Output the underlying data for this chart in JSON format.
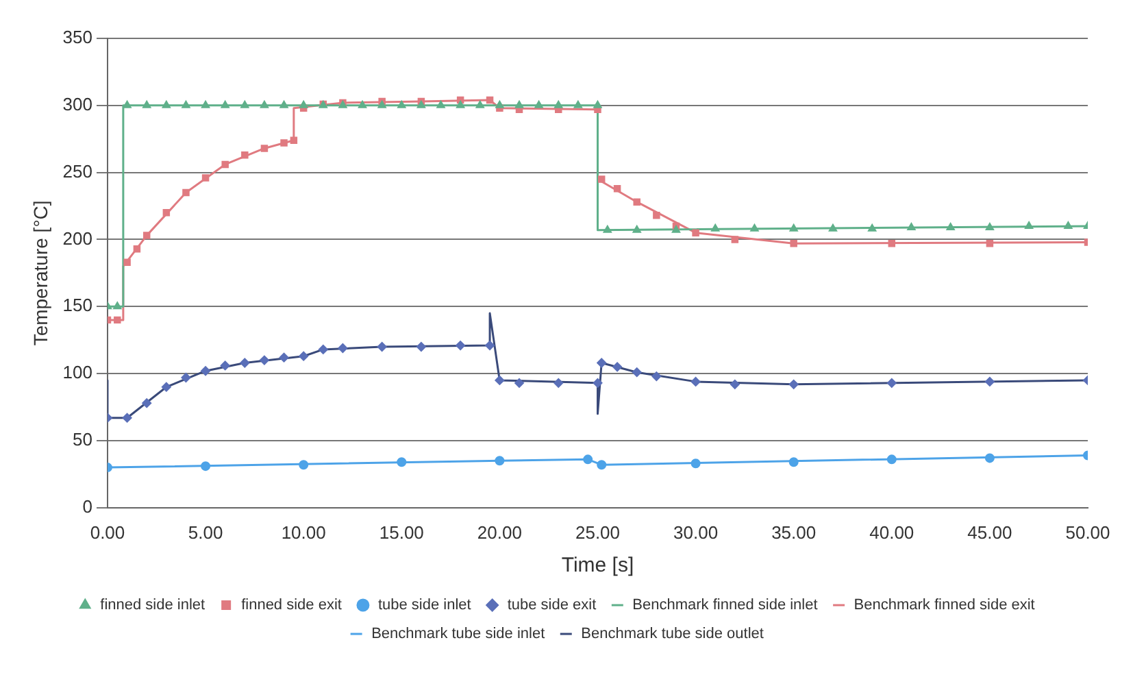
{
  "chart_data": {
    "type": "line",
    "xlabel": "Time [s]",
    "ylabel": "Temperature [°C]",
    "xlim": [
      0,
      50
    ],
    "xticks": [
      {
        "value": 0,
        "label": "0.00"
      },
      {
        "value": 5,
        "label": "5.00"
      },
      {
        "value": 10,
        "label": "10.00"
      },
      {
        "value": 15,
        "label": "15.00"
      },
      {
        "value": 20,
        "label": "20.00"
      },
      {
        "value": 25,
        "label": "25.00"
      },
      {
        "value": 30,
        "label": "30.00"
      },
      {
        "value": 35,
        "label": "35.00"
      },
      {
        "value": 40,
        "label": "40.00"
      },
      {
        "value": 45,
        "label": "45.00"
      },
      {
        "value": 50,
        "label": "50.00"
      }
    ],
    "ylim": [
      0,
      350
    ],
    "yticks": [
      0,
      50,
      100,
      150,
      200,
      250,
      300,
      350
    ],
    "grid": "y",
    "legend": "bottom",
    "series": [
      {
        "name": "finned side inlet",
        "type": "scatter",
        "marker": "triangle",
        "color": "#5fb08a",
        "x": [
          0,
          0.5,
          1,
          2,
          3,
          4,
          5,
          6,
          7,
          8,
          9,
          10,
          11,
          12,
          13,
          14,
          15,
          16,
          17,
          18,
          19,
          20,
          21,
          22,
          23,
          24,
          25,
          25.5,
          27,
          29,
          31,
          33,
          35,
          37,
          39,
          41,
          43,
          45,
          47,
          49,
          50
        ],
        "values": [
          150,
          150,
          300,
          300,
          300,
          300,
          300,
          300,
          300,
          300,
          300,
          300,
          300,
          300,
          300,
          300,
          300,
          300,
          300,
          300,
          300,
          300,
          300,
          300,
          300,
          300,
          300,
          207,
          207,
          207,
          208,
          208,
          208,
          208,
          208,
          209,
          209,
          209,
          210,
          210,
          210
        ]
      },
      {
        "name": "finned side exit",
        "type": "scatter",
        "marker": "square",
        "color": "#e07a80",
        "x": [
          0,
          0.5,
          1,
          1.5,
          2,
          3,
          4,
          5,
          6,
          7,
          8,
          9,
          9.5,
          10,
          11,
          12,
          14,
          16,
          18,
          19.5,
          20,
          21,
          23,
          25,
          25.2,
          26,
          27,
          28,
          29,
          30,
          32,
          35,
          40,
          45,
          50
        ],
        "values": [
          140,
          140,
          183,
          193,
          203,
          220,
          235,
          246,
          256,
          263,
          268,
          272,
          274,
          298,
          301,
          302,
          303,
          303,
          304,
          304,
          298,
          297,
          297,
          297,
          245,
          238,
          228,
          218,
          210,
          205,
          200,
          197,
          197,
          197,
          198
        ]
      },
      {
        "name": "tube side inlet",
        "type": "scatter",
        "marker": "circle",
        "color": "#4da3e8",
        "x": [
          0,
          5,
          10,
          15,
          20,
          24.5,
          25.2,
          30,
          35,
          40,
          45,
          50
        ],
        "values": [
          30,
          31,
          32,
          34,
          35,
          36,
          32,
          33,
          34,
          36,
          37,
          39
        ]
      },
      {
        "name": "tube side exit",
        "type": "scatter",
        "marker": "diamond",
        "color": "#5a6fb8",
        "x": [
          0,
          1,
          2,
          3,
          4,
          5,
          6,
          7,
          8,
          9,
          10,
          11,
          12,
          14,
          16,
          18,
          19.5,
          20,
          21,
          23,
          25,
          25.2,
          26,
          27,
          28,
          30,
          32,
          35,
          40,
          45,
          50
        ],
        "values": [
          67,
          67,
          78,
          90,
          97,
          102,
          106,
          108,
          110,
          112,
          113,
          118,
          119,
          120,
          120,
          121,
          121,
          95,
          93,
          93,
          93,
          108,
          105,
          101,
          98,
          94,
          92,
          92,
          93,
          94,
          95
        ]
      },
      {
        "name": "Benchmark finned side inlet",
        "marker": "none",
        "color": "#5fb08a",
        "x": [
          0,
          0.8,
          0.8,
          25,
          25,
          50
        ],
        "values": [
          150,
          150,
          300,
          300,
          207,
          210
        ]
      },
      {
        "name": "Benchmark finned side exit",
        "marker": "none",
        "color": "#e07a80",
        "x": [
          0,
          0.8,
          0.8,
          2,
          4,
          6,
          8,
          9.5,
          9.5,
          12,
          16,
          19.5,
          20,
          25,
          25,
          27,
          30,
          35,
          50
        ],
        "values": [
          140,
          140,
          180,
          203,
          235,
          256,
          268,
          274,
          298,
          302,
          303,
          304,
          298,
          297,
          245,
          228,
          205,
          197,
          198
        ]
      },
      {
        "name": "Benchmark tube side inlet",
        "marker": "none",
        "color": "#4da3e8",
        "x": [
          0,
          20,
          24.5,
          25.2,
          50
        ],
        "values": [
          30,
          35,
          36,
          32,
          39
        ]
      },
      {
        "name": "Benchmark tube side outlet",
        "marker": "none",
        "color": "#3a4a7a",
        "x": [
          0,
          0,
          1,
          3,
          5,
          7,
          10,
          11,
          14,
          19.5,
          19.5,
          20,
          25,
          25,
          25.2,
          27,
          30,
          35,
          50
        ],
        "values": [
          95,
          67,
          67,
          90,
          102,
          108,
          113,
          118,
          120,
          121,
          145,
          95,
          93,
          70,
          108,
          101,
          94,
          92,
          95
        ]
      }
    ]
  }
}
